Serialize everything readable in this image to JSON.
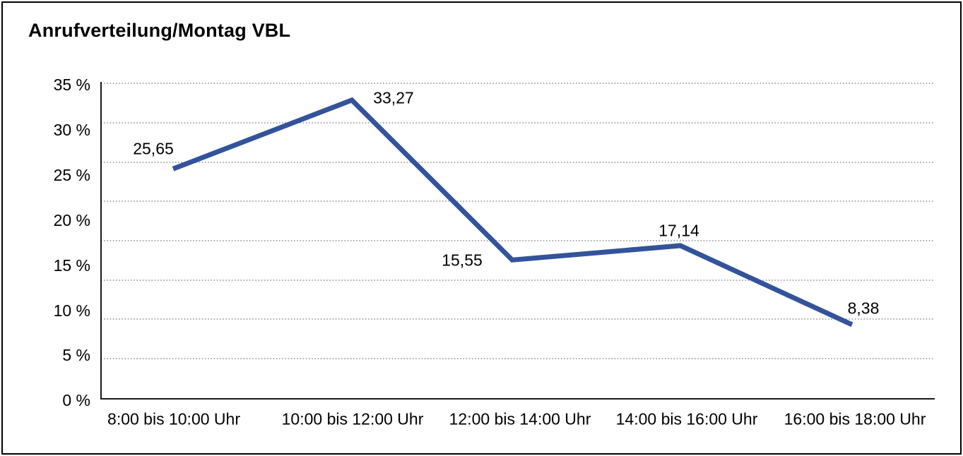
{
  "chart_data": {
    "type": "line",
    "title": "Anrufverteilung/Montag VBL",
    "categories": [
      "8:00 bis 10:00 Uhr",
      "10:00 bis 12:00 Uhr",
      "12:00 bis 14:00 Uhr",
      "14:00 bis 16:00 Uhr",
      "16:00 bis 18:00 Uhr"
    ],
    "values": [
      25.65,
      33.27,
      15.55,
      17.14,
      8.38
    ],
    "value_labels": [
      "25,65",
      "33,27",
      "15,55",
      "17,14",
      "8,38"
    ],
    "ytick_labels": [
      "35 %",
      "30 %",
      "25 %",
      "20 %",
      "15 %",
      "10 %",
      "5 %",
      "0 %"
    ],
    "ylim": [
      0,
      35
    ],
    "ylabel": "",
    "xlabel": "",
    "grid": "horizontal-dotted",
    "legend": "none",
    "line_color": "#33539B",
    "axis_color": "#1a1a1a",
    "grid_color": "#7a7a7a"
  }
}
